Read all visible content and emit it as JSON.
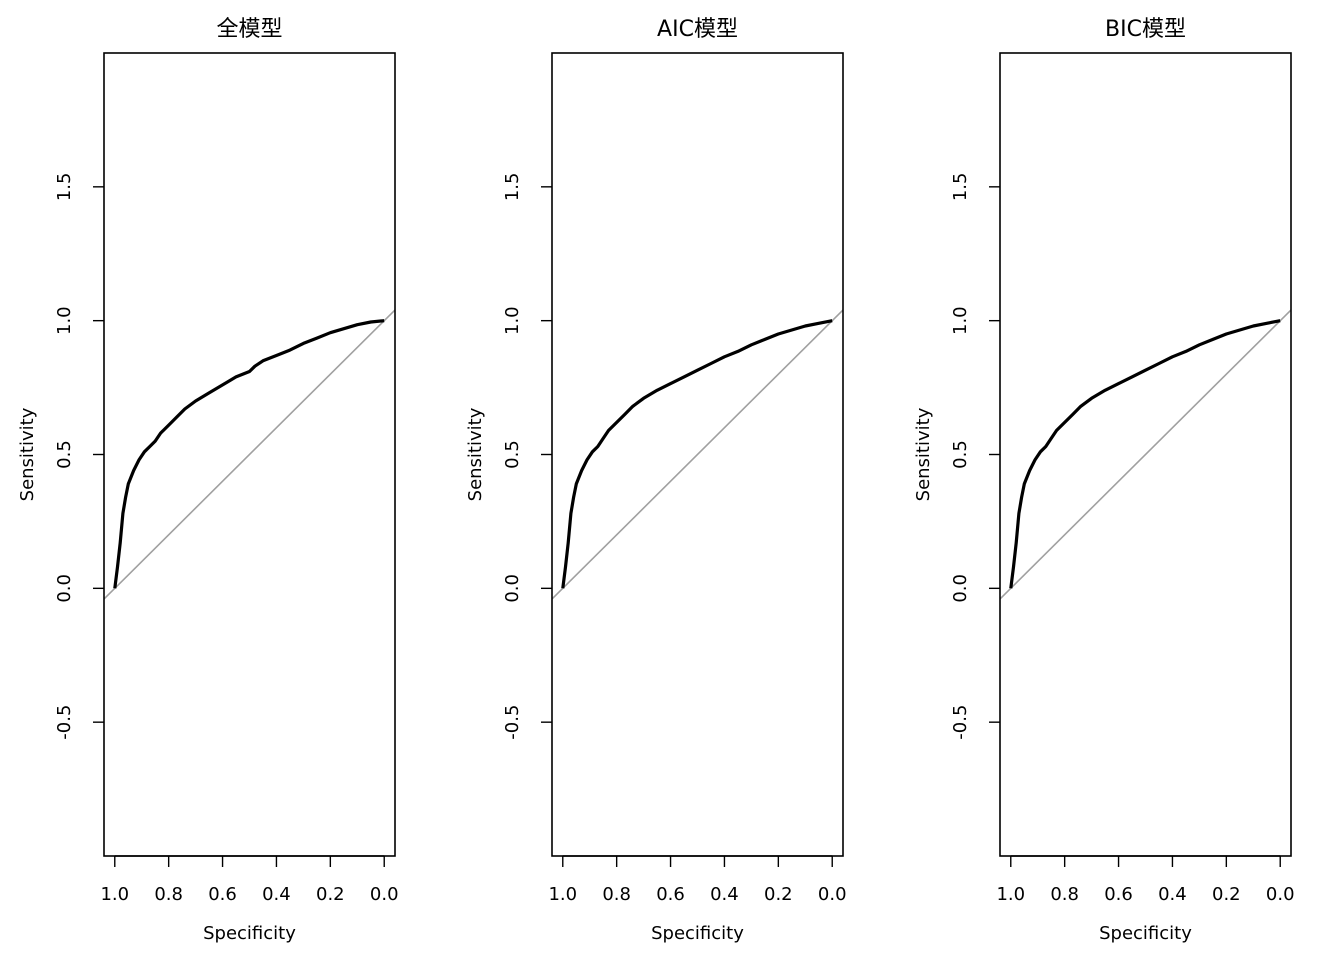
{
  "chart_data": [
    {
      "type": "line",
      "title": "全模型",
      "xlabel": "Specificity",
      "ylabel": "Sensitivity",
      "x_reversed": true,
      "xlim": [
        1.04,
        -0.04
      ],
      "ylim": [
        -1.0,
        2.0
      ],
      "x_ticks": [
        1.0,
        0.8,
        0.6,
        0.4,
        0.2,
        0.0
      ],
      "x_tick_labels": [
        "1.0",
        "0.8",
        "0.6",
        "0.4",
        "0.2",
        "0.0"
      ],
      "y_ticks": [
        -0.5,
        0.0,
        0.5,
        1.0,
        1.5
      ],
      "y_tick_labels": [
        "-0.5",
        "0.0",
        "0.5",
        "1.0",
        "1.5"
      ],
      "grid": false,
      "reference_line": {
        "from": [
          1.0,
          0.0
        ],
        "to": [
          0.0,
          1.0
        ],
        "color": "#a0a0a0"
      },
      "series": [
        {
          "color": "#000000",
          "specificity": [
            1.0,
            0.99,
            0.98,
            0.97,
            0.96,
            0.95,
            0.93,
            0.91,
            0.89,
            0.87,
            0.85,
            0.83,
            0.8,
            0.77,
            0.74,
            0.7,
            0.65,
            0.6,
            0.55,
            0.5,
            0.48,
            0.45,
            0.4,
            0.35,
            0.3,
            0.25,
            0.2,
            0.15,
            0.1,
            0.05,
            0.0
          ],
          "sensitivity": [
            0.0,
            0.08,
            0.17,
            0.28,
            0.34,
            0.39,
            0.44,
            0.48,
            0.51,
            0.53,
            0.55,
            0.58,
            0.61,
            0.64,
            0.67,
            0.7,
            0.73,
            0.76,
            0.79,
            0.81,
            0.83,
            0.85,
            0.87,
            0.89,
            0.915,
            0.935,
            0.955,
            0.97,
            0.985,
            0.995,
            1.0
          ]
        }
      ]
    },
    {
      "type": "line",
      "title": "AIC模型",
      "xlabel": "Specificity",
      "ylabel": "Sensitivity",
      "x_reversed": true,
      "xlim": [
        1.04,
        -0.04
      ],
      "ylim": [
        -1.0,
        2.0
      ],
      "x_ticks": [
        1.0,
        0.8,
        0.6,
        0.4,
        0.2,
        0.0
      ],
      "x_tick_labels": [
        "1.0",
        "0.8",
        "0.6",
        "0.4",
        "0.2",
        "0.0"
      ],
      "y_ticks": [
        -0.5,
        0.0,
        0.5,
        1.0,
        1.5
      ],
      "y_tick_labels": [
        "-0.5",
        "0.0",
        "0.5",
        "1.0",
        "1.5"
      ],
      "grid": false,
      "reference_line": {
        "from": [
          1.0,
          0.0
        ],
        "to": [
          0.0,
          1.0
        ],
        "color": "#a0a0a0"
      },
      "series": [
        {
          "color": "#000000",
          "specificity": [
            1.0,
            0.99,
            0.98,
            0.97,
            0.96,
            0.95,
            0.93,
            0.91,
            0.89,
            0.87,
            0.85,
            0.83,
            0.8,
            0.77,
            0.74,
            0.7,
            0.65,
            0.6,
            0.55,
            0.5,
            0.45,
            0.4,
            0.35,
            0.3,
            0.25,
            0.2,
            0.15,
            0.1,
            0.05,
            0.0
          ],
          "sensitivity": [
            0.0,
            0.08,
            0.17,
            0.28,
            0.34,
            0.39,
            0.44,
            0.48,
            0.51,
            0.53,
            0.56,
            0.59,
            0.62,
            0.65,
            0.68,
            0.71,
            0.74,
            0.765,
            0.79,
            0.815,
            0.84,
            0.865,
            0.885,
            0.91,
            0.93,
            0.95,
            0.965,
            0.98,
            0.99,
            1.0
          ]
        }
      ]
    },
    {
      "type": "line",
      "title": "BIC模型",
      "xlabel": "Specificity",
      "ylabel": "Sensitivity",
      "x_reversed": true,
      "xlim": [
        1.04,
        -0.04
      ],
      "ylim": [
        -1.0,
        2.0
      ],
      "x_ticks": [
        1.0,
        0.8,
        0.6,
        0.4,
        0.2,
        0.0
      ],
      "x_tick_labels": [
        "1.0",
        "0.8",
        "0.6",
        "0.4",
        "0.2",
        "0.0"
      ],
      "y_ticks": [
        -0.5,
        0.0,
        0.5,
        1.0,
        1.5
      ],
      "y_tick_labels": [
        "-0.5",
        "0.0",
        "0.5",
        "1.0",
        "1.5"
      ],
      "grid": false,
      "reference_line": {
        "from": [
          1.0,
          0.0
        ],
        "to": [
          0.0,
          1.0
        ],
        "color": "#a0a0a0"
      },
      "series": [
        {
          "color": "#000000",
          "specificity": [
            1.0,
            0.99,
            0.98,
            0.97,
            0.96,
            0.95,
            0.93,
            0.91,
            0.89,
            0.87,
            0.85,
            0.83,
            0.8,
            0.77,
            0.74,
            0.7,
            0.65,
            0.6,
            0.55,
            0.5,
            0.45,
            0.4,
            0.35,
            0.3,
            0.25,
            0.2,
            0.15,
            0.1,
            0.05,
            0.0
          ],
          "sensitivity": [
            0.0,
            0.08,
            0.17,
            0.28,
            0.34,
            0.39,
            0.44,
            0.48,
            0.51,
            0.53,
            0.56,
            0.59,
            0.62,
            0.65,
            0.68,
            0.71,
            0.74,
            0.765,
            0.79,
            0.815,
            0.84,
            0.865,
            0.885,
            0.91,
            0.93,
            0.95,
            0.965,
            0.98,
            0.99,
            1.0
          ]
        }
      ]
    }
  ]
}
